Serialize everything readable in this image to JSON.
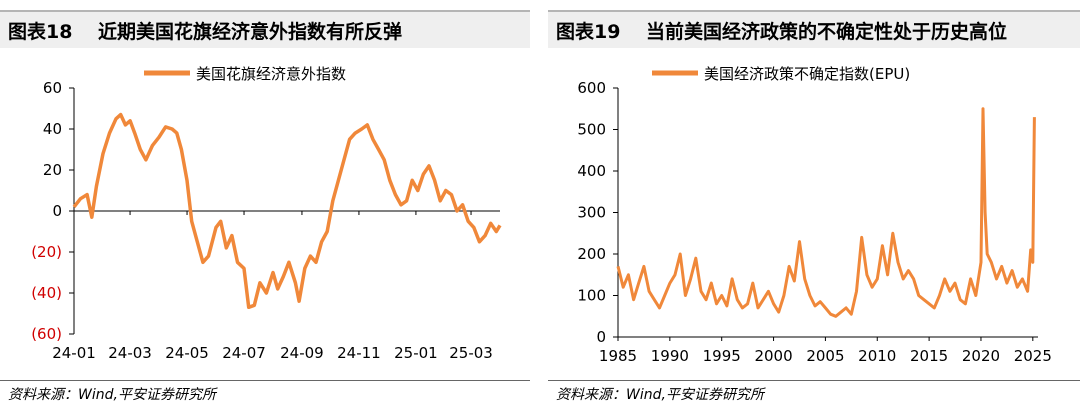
{
  "charts": [
    {
      "fig_no": "图表18",
      "title": "近期美国花旗经济意外指数有所反弹",
      "source": "资料来源：Wind,平安证券研究所",
      "chart_data": {
        "type": "line",
        "color": "#F0883A",
        "negative_label_color": "#D00000",
        "legend": [
          "美国花旗经济意外指数"
        ],
        "legend_position": "top",
        "grid": false,
        "ylim": [
          -60,
          60
        ],
        "xlim": [
          "2024-01-01",
          "2025-04-01"
        ],
        "y_ticks": [
          "60",
          "40",
          "20",
          "0",
          "(20)",
          "(40)",
          "(60)"
        ],
        "y_tick_values": [
          60,
          40,
          20,
          0,
          -20,
          -40,
          -60
        ],
        "x_ticks": [
          "24-01",
          "24-03",
          "24-05",
          "24-07",
          "24-09",
          "24-11",
          "25-01",
          "25-03"
        ],
        "x_tick_dates": [
          "2024-01-01",
          "2024-03-01",
          "2024-05-01",
          "2024-07-01",
          "2024-09-01",
          "2024-11-01",
          "2025-01-01",
          "2025-03-01"
        ],
        "series": [
          {
            "name": "美国花旗经济意外指数",
            "points": [
              [
                "2024-01-01",
                2
              ],
              [
                "2024-01-08",
                6
              ],
              [
                "2024-01-15",
                8
              ],
              [
                "2024-01-20",
                -3
              ],
              [
                "2024-01-25",
                12
              ],
              [
                "2024-02-01",
                28
              ],
              [
                "2024-02-08",
                38
              ],
              [
                "2024-02-15",
                45
              ],
              [
                "2024-02-20",
                47
              ],
              [
                "2024-02-25",
                42
              ],
              [
                "2024-03-01",
                44
              ],
              [
                "2024-03-06",
                38
              ],
              [
                "2024-03-12",
                30
              ],
              [
                "2024-03-18",
                25
              ],
              [
                "2024-03-25",
                32
              ],
              [
                "2024-04-01",
                36
              ],
              [
                "2024-04-08",
                41
              ],
              [
                "2024-04-15",
                40
              ],
              [
                "2024-04-20",
                38
              ],
              [
                "2024-04-25",
                30
              ],
              [
                "2024-05-01",
                15
              ],
              [
                "2024-05-06",
                -5
              ],
              [
                "2024-05-12",
                -15
              ],
              [
                "2024-05-18",
                -25
              ],
              [
                "2024-05-24",
                -22
              ],
              [
                "2024-06-01",
                -8
              ],
              [
                "2024-06-06",
                -5
              ],
              [
                "2024-06-12",
                -18
              ],
              [
                "2024-06-18",
                -12
              ],
              [
                "2024-06-24",
                -25
              ],
              [
                "2024-07-01",
                -28
              ],
              [
                "2024-07-06",
                -47
              ],
              [
                "2024-07-12",
                -46
              ],
              [
                "2024-07-18",
                -35
              ],
              [
                "2024-07-25",
                -40
              ],
              [
                "2024-08-01",
                -30
              ],
              [
                "2024-08-06",
                -38
              ],
              [
                "2024-08-12",
                -32
              ],
              [
                "2024-08-18",
                -25
              ],
              [
                "2024-08-25",
                -35
              ],
              [
                "2024-08-29",
                -44
              ],
              [
                "2024-09-04",
                -28
              ],
              [
                "2024-09-10",
                -22
              ],
              [
                "2024-09-16",
                -25
              ],
              [
                "2024-09-22",
                -15
              ],
              [
                "2024-09-28",
                -10
              ],
              [
                "2024-10-04",
                5
              ],
              [
                "2024-10-10",
                15
              ],
              [
                "2024-10-16",
                25
              ],
              [
                "2024-10-22",
                35
              ],
              [
                "2024-10-28",
                38
              ],
              [
                "2024-11-04",
                40
              ],
              [
                "2024-11-10",
                42
              ],
              [
                "2024-11-16",
                35
              ],
              [
                "2024-11-22",
                30
              ],
              [
                "2024-11-28",
                25
              ],
              [
                "2024-12-04",
                15
              ],
              [
                "2024-12-10",
                8
              ],
              [
                "2024-12-16",
                3
              ],
              [
                "2024-12-22",
                5
              ],
              [
                "2024-12-28",
                15
              ],
              [
                "2025-01-03",
                10
              ],
              [
                "2025-01-09",
                18
              ],
              [
                "2025-01-15",
                22
              ],
              [
                "2025-01-21",
                15
              ],
              [
                "2025-01-27",
                5
              ],
              [
                "2025-02-02",
                10
              ],
              [
                "2025-02-08",
                8
              ],
              [
                "2025-02-14",
                0
              ],
              [
                "2025-02-20",
                3
              ],
              [
                "2025-02-26",
                -5
              ],
              [
                "2025-03-04",
                -8
              ],
              [
                "2025-03-10",
                -15
              ],
              [
                "2025-03-16",
                -12
              ],
              [
                "2025-03-22",
                -6
              ],
              [
                "2025-03-28",
                -10
              ],
              [
                "2025-04-01",
                -7
              ]
            ]
          }
        ]
      }
    },
    {
      "fig_no": "图表19",
      "title": "当前美国经济政策的不确定性处于历史高位",
      "source": "资料来源：Wind,平安证券研究所",
      "chart_data": {
        "type": "line",
        "color": "#F0883A",
        "legend": [
          "美国经济政策不确定指数(EPU)"
        ],
        "legend_position": "top",
        "grid": false,
        "ylim": [
          0,
          600
        ],
        "xlim": [
          1985,
          2025.5
        ],
        "y_ticks": [
          "600",
          "500",
          "400",
          "300",
          "200",
          "100",
          "0"
        ],
        "y_tick_values": [
          600,
          500,
          400,
          300,
          200,
          100,
          0
        ],
        "x_ticks": [
          "1985",
          "1990",
          "1995",
          "2000",
          "2005",
          "2010",
          "2015",
          "2020",
          "2025"
        ],
        "x_tick_values": [
          1985,
          1990,
          1995,
          2000,
          2005,
          2010,
          2015,
          2020,
          2025
        ],
        "series": [
          {
            "name": "美国经济政策不确定指数(EPU)",
            "x": [
              1985,
              1985.5,
              1986,
              1986.5,
              1987,
              1987.5,
              1988,
              1988.5,
              1989,
              1989.5,
              1990,
              1990.5,
              1991,
              1991.5,
              1992,
              1992.5,
              1993,
              1993.5,
              1994,
              1994.5,
              1995,
              1995.5,
              1996,
              1996.5,
              1997,
              1997.5,
              1998,
              1998.5,
              1999,
              1999.5,
              2000,
              2000.5,
              2001,
              2001.5,
              2002,
              2002.5,
              2003,
              2003.5,
              2004,
              2004.5,
              2005,
              2005.5,
              2006,
              2006.5,
              2007,
              2007.5,
              2008,
              2008.5,
              2009,
              2009.5,
              2010,
              2010.5,
              2011,
              2011.5,
              2012,
              2012.5,
              2013,
              2013.5,
              2014,
              2014.5,
              2015,
              2015.5,
              2016,
              2016.5,
              2017,
              2017.5,
              2018,
              2018.5,
              2019,
              2019.5,
              2020,
              2020.2,
              2020.4,
              2020.6,
              2021,
              2021.5,
              2022,
              2022.5,
              2023,
              2023.5,
              2024,
              2024.5,
              2024.8,
              2025,
              2025.15
            ],
            "values": [
              170,
              120,
              150,
              90,
              130,
              170,
              110,
              90,
              70,
              100,
              130,
              150,
              200,
              100,
              140,
              190,
              110,
              90,
              130,
              80,
              100,
              75,
              140,
              90,
              70,
              80,
              130,
              70,
              90,
              110,
              80,
              60,
              100,
              170,
              135,
              230,
              140,
              100,
              75,
              85,
              70,
              55,
              50,
              60,
              70,
              55,
              110,
              240,
              150,
              120,
              140,
              220,
              150,
              250,
              180,
              140,
              160,
              140,
              100,
              90,
              80,
              70,
              100,
              140,
              110,
              130,
              90,
              80,
              140,
              100,
              180,
              550,
              300,
              200,
              180,
              140,
              170,
              130,
              160,
              120,
              140,
              110,
              210,
              180,
              530
            ]
          }
        ]
      }
    }
  ]
}
